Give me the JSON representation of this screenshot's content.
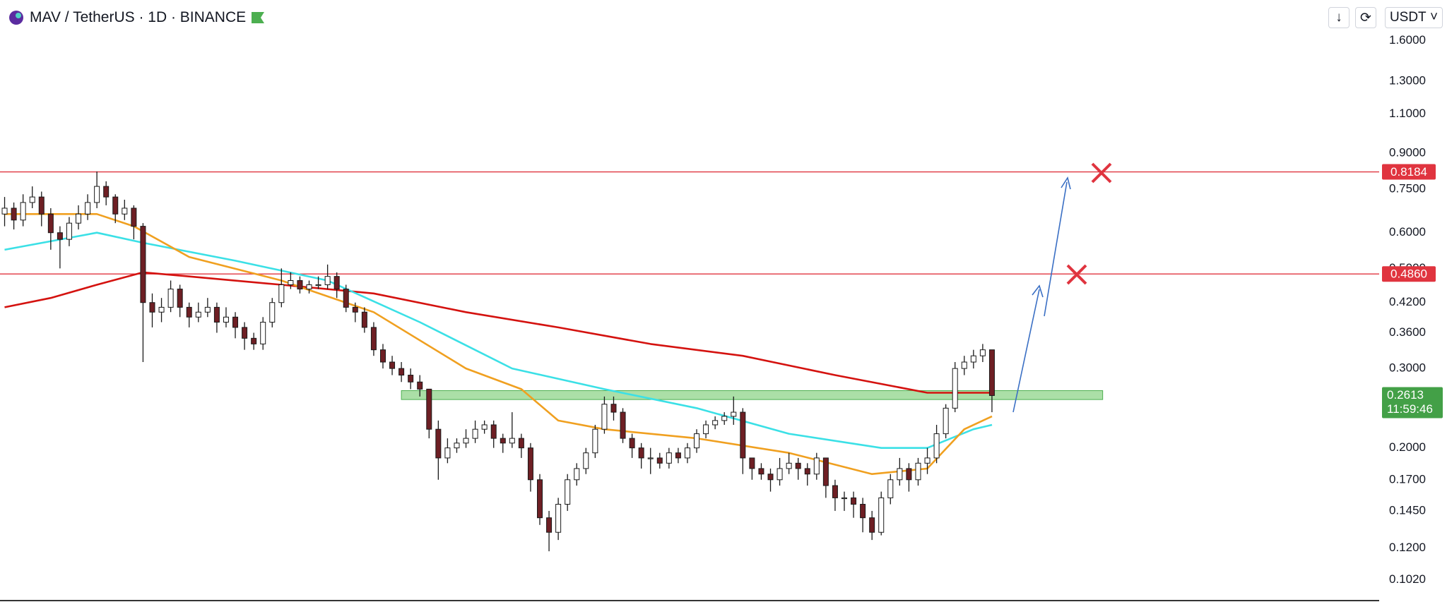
{
  "chart_data": {
    "type": "candlestick",
    "title": "MAV / TetherUS · 1D · BINANCE",
    "currency": "USDT",
    "countdown": "11:59:46",
    "log_scale": true,
    "up_color": "#ffffff",
    "down_color": "#6e1f24",
    "ylim": [
      0.0924,
      1.968
    ],
    "yticks": [
      {
        "value": 1.6,
        "label": "1.6000"
      },
      {
        "value": 1.3,
        "label": "1.3000"
      },
      {
        "value": 1.1,
        "label": "1.1000"
      },
      {
        "value": 0.9,
        "label": "0.9000"
      },
      {
        "value": 0.75,
        "label": "0.7500"
      },
      {
        "value": 0.6,
        "label": "0.6000"
      },
      {
        "value": 0.5,
        "label": "0.5000"
      },
      {
        "value": 0.42,
        "label": "0.4200"
      },
      {
        "value": 0.36,
        "label": "0.3600"
      },
      {
        "value": 0.3,
        "label": "0.3000"
      },
      {
        "value": 0.2,
        "label": "0.2000"
      },
      {
        "value": 0.17,
        "label": "0.1700"
      },
      {
        "value": 0.145,
        "label": "0.1450"
      },
      {
        "value": 0.12,
        "label": "0.1200"
      },
      {
        "value": 0.102,
        "label": "0.1020"
      }
    ],
    "open": [
      0.66,
      0.68,
      0.64,
      0.7,
      0.72,
      0.66,
      0.6,
      0.58,
      0.63,
      0.66,
      0.7,
      0.76,
      0.72,
      0.66,
      0.68,
      0.62,
      0.42,
      0.4,
      0.41,
      0.45,
      0.41,
      0.39,
      0.4,
      0.41,
      0.38,
      0.39,
      0.37,
      0.35,
      0.34,
      0.38,
      0.42,
      0.46,
      0.47,
      0.45,
      0.46,
      0.46,
      0.48,
      0.45,
      0.41,
      0.4,
      0.37,
      0.33,
      0.31,
      0.3,
      0.29,
      0.28,
      0.27,
      0.22,
      0.19,
      0.2,
      0.205,
      0.21,
      0.22,
      0.225,
      0.21,
      0.205,
      0.21,
      0.2,
      0.17,
      0.14,
      0.13,
      0.15,
      0.17,
      0.18,
      0.195,
      0.22,
      0.25,
      0.24,
      0.21,
      0.2,
      0.19,
      0.19,
      0.185,
      0.195,
      0.19,
      0.2,
      0.215,
      0.225,
      0.23,
      0.235,
      0.24,
      0.19,
      0.18,
      0.175,
      0.17,
      0.18,
      0.185,
      0.18,
      0.175,
      0.19,
      0.165,
      0.155,
      0.155,
      0.15,
      0.14,
      0.13,
      0.155,
      0.17,
      0.18,
      0.17,
      0.185,
      0.19,
      0.215,
      0.245,
      0.3,
      0.31,
      0.32,
      0.33
    ],
    "high": [
      0.72,
      0.7,
      0.73,
      0.76,
      0.74,
      0.68,
      0.62,
      0.65,
      0.69,
      0.73,
      0.82,
      0.78,
      0.73,
      0.71,
      0.69,
      0.63,
      0.44,
      0.43,
      0.47,
      0.46,
      0.42,
      0.42,
      0.43,
      0.42,
      0.41,
      0.4,
      0.38,
      0.36,
      0.39,
      0.43,
      0.5,
      0.49,
      0.48,
      0.47,
      0.48,
      0.51,
      0.49,
      0.46,
      0.42,
      0.41,
      0.38,
      0.34,
      0.32,
      0.31,
      0.3,
      0.29,
      0.27,
      0.23,
      0.21,
      0.21,
      0.22,
      0.23,
      0.23,
      0.23,
      0.215,
      0.24,
      0.215,
      0.205,
      0.175,
      0.145,
      0.155,
      0.175,
      0.185,
      0.2,
      0.225,
      0.26,
      0.26,
      0.245,
      0.215,
      0.205,
      0.2,
      0.195,
      0.2,
      0.2,
      0.205,
      0.22,
      0.23,
      0.235,
      0.24,
      0.26,
      0.245,
      0.19,
      0.185,
      0.18,
      0.19,
      0.195,
      0.19,
      0.185,
      0.195,
      0.19,
      0.17,
      0.16,
      0.16,
      0.155,
      0.145,
      0.16,
      0.175,
      0.19,
      0.185,
      0.19,
      0.2,
      0.225,
      0.25,
      0.31,
      0.32,
      0.33,
      0.34,
      0.33
    ],
    "low": [
      0.62,
      0.61,
      0.62,
      0.68,
      0.62,
      0.55,
      0.5,
      0.56,
      0.61,
      0.64,
      0.68,
      0.69,
      0.63,
      0.64,
      0.58,
      0.31,
      0.37,
      0.38,
      0.4,
      0.39,
      0.37,
      0.38,
      0.39,
      0.36,
      0.37,
      0.35,
      0.33,
      0.33,
      0.33,
      0.37,
      0.41,
      0.45,
      0.44,
      0.44,
      0.45,
      0.45,
      0.43,
      0.4,
      0.38,
      0.36,
      0.32,
      0.3,
      0.29,
      0.28,
      0.27,
      0.26,
      0.21,
      0.17,
      0.185,
      0.195,
      0.2,
      0.205,
      0.215,
      0.2,
      0.195,
      0.2,
      0.19,
      0.16,
      0.135,
      0.118,
      0.125,
      0.145,
      0.165,
      0.175,
      0.19,
      0.215,
      0.23,
      0.205,
      0.19,
      0.18,
      0.175,
      0.18,
      0.18,
      0.185,
      0.185,
      0.195,
      0.21,
      0.22,
      0.225,
      0.225,
      0.175,
      0.17,
      0.17,
      0.16,
      0.165,
      0.175,
      0.17,
      0.165,
      0.17,
      0.155,
      0.145,
      0.145,
      0.14,
      0.13,
      0.125,
      0.128,
      0.15,
      0.165,
      0.16,
      0.165,
      0.175,
      0.185,
      0.21,
      0.24,
      0.29,
      0.3,
      0.31,
      0.24
    ],
    "close": [
      0.68,
      0.64,
      0.7,
      0.72,
      0.66,
      0.6,
      0.58,
      0.63,
      0.66,
      0.7,
      0.76,
      0.72,
      0.66,
      0.68,
      0.62,
      0.42,
      0.4,
      0.41,
      0.45,
      0.41,
      0.39,
      0.4,
      0.41,
      0.38,
      0.39,
      0.37,
      0.35,
      0.34,
      0.38,
      0.42,
      0.46,
      0.47,
      0.45,
      0.46,
      0.46,
      0.48,
      0.45,
      0.41,
      0.4,
      0.37,
      0.33,
      0.31,
      0.3,
      0.29,
      0.28,
      0.27,
      0.22,
      0.19,
      0.2,
      0.205,
      0.21,
      0.22,
      0.225,
      0.21,
      0.205,
      0.21,
      0.2,
      0.17,
      0.14,
      0.13,
      0.15,
      0.17,
      0.18,
      0.195,
      0.22,
      0.25,
      0.24,
      0.21,
      0.2,
      0.19,
      0.19,
      0.185,
      0.195,
      0.19,
      0.2,
      0.215,
      0.225,
      0.23,
      0.235,
      0.24,
      0.19,
      0.18,
      0.175,
      0.17,
      0.18,
      0.185,
      0.18,
      0.175,
      0.19,
      0.165,
      0.155,
      0.155,
      0.15,
      0.14,
      0.13,
      0.155,
      0.17,
      0.18,
      0.17,
      0.185,
      0.19,
      0.215,
      0.245,
      0.3,
      0.31,
      0.32,
      0.33,
      0.2613
    ],
    "moving_averages": [
      {
        "color": "#d4120f",
        "x": [
          0,
          5,
          10,
          15,
          20,
          30,
          40,
          50,
          60,
          70,
          80,
          90,
          100,
          107
        ],
        "values": [
          0.41,
          0.43,
          0.46,
          0.49,
          0.48,
          0.46,
          0.44,
          0.4,
          0.37,
          0.34,
          0.32,
          0.29,
          0.265,
          0.265
        ]
      },
      {
        "color": "#3be0e6",
        "x": [
          0,
          10,
          15,
          25,
          35,
          45,
          55,
          65,
          75,
          85,
          95,
          100,
          105,
          107
        ],
        "values": [
          0.55,
          0.6,
          0.57,
          0.52,
          0.47,
          0.38,
          0.3,
          0.27,
          0.245,
          0.215,
          0.2,
          0.2,
          0.22,
          0.225
        ]
      },
      {
        "color": "#f0a020",
        "x": [
          0,
          10,
          14,
          20,
          30,
          40,
          50,
          56,
          60,
          65,
          75,
          85,
          94,
          100,
          104,
          107
        ],
        "values": [
          0.66,
          0.66,
          0.62,
          0.53,
          0.47,
          0.4,
          0.3,
          0.27,
          0.23,
          0.22,
          0.21,
          0.195,
          0.175,
          0.18,
          0.22,
          0.235
        ]
      }
    ],
    "levels": [
      0.8184,
      {
        "value": 0.486,
        "label": "0.4860"
      }
    ],
    "level_color": "#e0343f",
    "zone": {
      "low": 0.256,
      "high": 0.268,
      "color": "#8fd48a"
    }
  }
}
